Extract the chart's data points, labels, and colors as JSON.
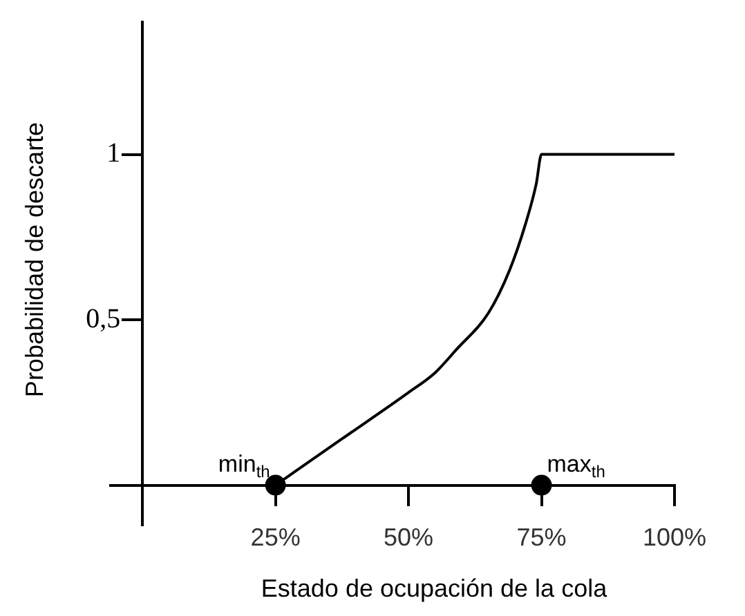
{
  "chart_data": {
    "type": "line",
    "xlabel": "Estado de ocupación de la cola",
    "ylabel": "Probabilidad de descarte",
    "xlim": [
      -6,
      100
    ],
    "ylim": [
      -0.12,
      1.4
    ],
    "xticks": [
      {
        "value": 25,
        "label": "25%"
      },
      {
        "value": 50,
        "label": "50%"
      },
      {
        "value": 75,
        "label": "75%"
      },
      {
        "value": 100,
        "label": "100%"
      }
    ],
    "yticks": [
      {
        "value": 0.5,
        "label": "0,5"
      },
      1
    ],
    "grid": false,
    "legend": false,
    "series": [
      {
        "color": "#000000",
        "marker": "none",
        "line_style": "solid",
        "x": [
          25,
          37.5,
          50,
          55,
          59,
          65,
          69,
          72,
          74,
          75,
          100
        ],
        "values": [
          0,
          0.14,
          0.28,
          0.34,
          0.41,
          0.52,
          0.65,
          0.79,
          0.91,
          1,
          1
        ]
      },
      {
        "type": "scatter",
        "color": "#000000",
        "marker": "circle",
        "x": [
          25,
          75
        ],
        "values": [
          0,
          0
        ]
      }
    ],
    "annotations": [
      {
        "text": "min$_{th}$",
        "x": 25,
        "y": 0
      },
      {
        "text": "max$_{th}$",
        "x": 75,
        "y": 0
      }
    ]
  }
}
